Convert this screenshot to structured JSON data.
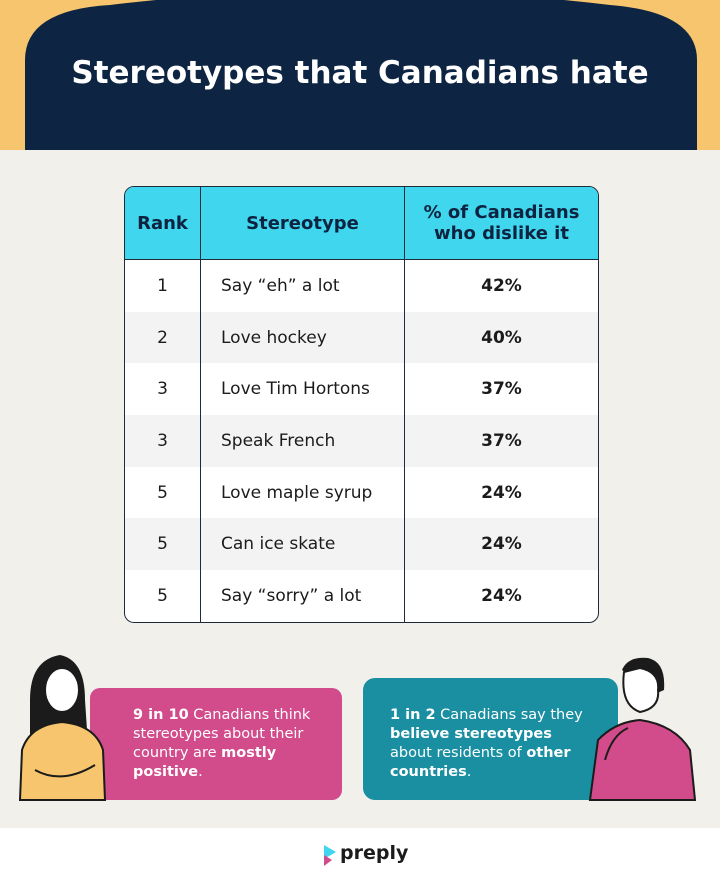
{
  "header": {
    "title": "Stereotypes that Canadians hate"
  },
  "table": {
    "columns": [
      "Rank",
      "Stereotype",
      "% of Canadians who dislike it"
    ],
    "rows": [
      [
        "1",
        "Say “eh” a lot",
        "42%"
      ],
      [
        "2",
        "Love hockey",
        "40%"
      ],
      [
        "3",
        "Love Tim Hortons",
        "37%"
      ],
      [
        "3",
        "Speak French",
        "37%"
      ],
      [
        "5",
        "Love maple syrup",
        "24%"
      ],
      [
        "5",
        "Can ice skate",
        "24%"
      ],
      [
        "5",
        "Say “sorry” a lot",
        "24%"
      ]
    ]
  },
  "callouts": [
    {
      "segments": [
        {
          "text": "9 in 10",
          "bold": true
        },
        {
          "text": " Canadians think stereotypes about their country are ",
          "bold": false
        },
        {
          "text": "mostly positive",
          "bold": true
        },
        {
          "text": ".",
          "bold": false
        }
      ]
    },
    {
      "segments": [
        {
          "text": "1 in 2",
          "bold": true
        },
        {
          "text": " Canadians say they ",
          "bold": false
        },
        {
          "text": "believe stereotypes",
          "bold": true
        },
        {
          "text": " about residents of ",
          "bold": false
        },
        {
          "text": "other countries",
          "bold": true
        },
        {
          "text": ".",
          "bold": false
        }
      ]
    }
  ],
  "footer": {
    "logo": "preply"
  }
}
